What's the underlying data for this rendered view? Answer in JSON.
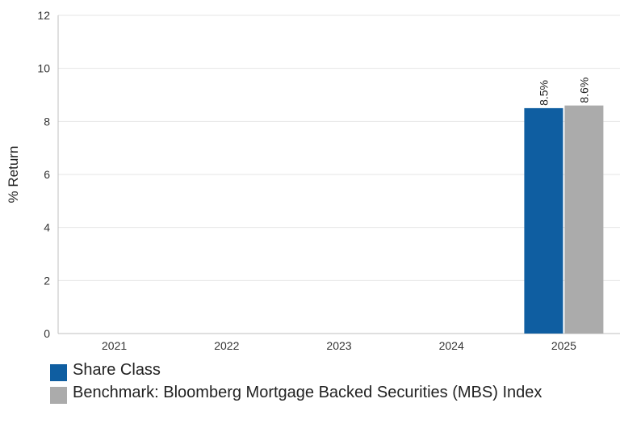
{
  "chart_data": {
    "type": "bar",
    "ylabel": "% Return",
    "ylim": [
      0,
      12
    ],
    "yticks": [
      0,
      2,
      4,
      6,
      8,
      10,
      12
    ],
    "categories": [
      "2021",
      "2022",
      "2023",
      "2024",
      "2025"
    ],
    "grid": true,
    "legend_position": "bottom",
    "series": [
      {
        "name": "Share Class",
        "color": "#0f5ea1",
        "values": [
          null,
          null,
          null,
          null,
          8.5
        ],
        "labels": [
          "",
          "",
          "",
          "",
          "8.5%"
        ]
      },
      {
        "name": "Benchmark: Bloomberg Mortgage Backed Securities (MBS) Index",
        "color": "#ababab",
        "values": [
          null,
          null,
          null,
          null,
          8.6
        ],
        "labels": [
          "",
          "",
          "",
          "",
          "8.6%"
        ]
      }
    ]
  }
}
